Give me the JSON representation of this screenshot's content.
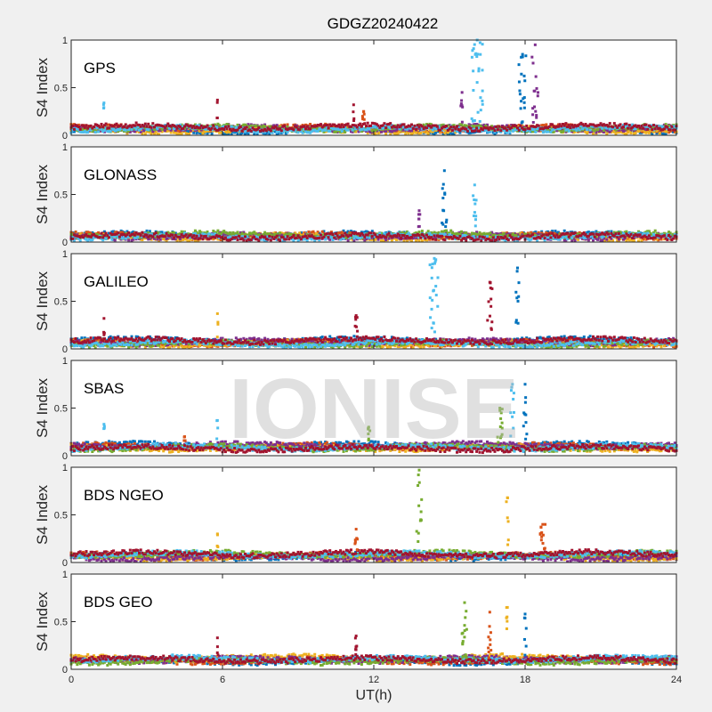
{
  "chart_data": {
    "type": "scatter",
    "title": "GDGZ20240422",
    "xlabel": "UT(h)",
    "ylabel": "S4 Index",
    "xlim": [
      0,
      24
    ],
    "ylim": [
      0,
      1
    ],
    "xticks": [
      "0",
      "6",
      "12",
      "18",
      "24"
    ],
    "yticks": [
      "0",
      "0.5",
      "1"
    ],
    "watermark": "IONISE",
    "grid": false,
    "colors": [
      "#0072BD",
      "#D95319",
      "#EDB120",
      "#7E2F8E",
      "#77AC30",
      "#4DBEEE",
      "#A2142F"
    ],
    "panels": [
      {
        "name": "GPS",
        "baseline": 0.07,
        "spikes": [
          {
            "t": 1.3,
            "peak": 0.34,
            "color": 5,
            "width": 0.05
          },
          {
            "t": 5.8,
            "peak": 0.37,
            "color": 6,
            "width": 0.05
          },
          {
            "t": 11.2,
            "peak": 0.32,
            "color": 6,
            "width": 0.05
          },
          {
            "t": 11.6,
            "peak": 0.25,
            "color": 1,
            "width": 0.1
          },
          {
            "t": 15.5,
            "peak": 0.45,
            "color": 3,
            "width": 0.1
          },
          {
            "t": 16.1,
            "peak": 1.0,
            "color": 5,
            "width": 0.45
          },
          {
            "t": 17.9,
            "peak": 0.85,
            "color": 0,
            "width": 0.3
          },
          {
            "t": 18.4,
            "peak": 0.95,
            "color": 3,
            "width": 0.25
          }
        ]
      },
      {
        "name": "GLONASS",
        "baseline": 0.07,
        "spikes": [
          {
            "t": 13.8,
            "peak": 0.33,
            "color": 3,
            "width": 0.1
          },
          {
            "t": 14.8,
            "peak": 0.75,
            "color": 0,
            "width": 0.2
          },
          {
            "t": 16.0,
            "peak": 0.6,
            "color": 5,
            "width": 0.15
          }
        ]
      },
      {
        "name": "GALILEO",
        "baseline": 0.07,
        "spikes": [
          {
            "t": 1.3,
            "peak": 0.32,
            "color": 6,
            "width": 0.05
          },
          {
            "t": 5.8,
            "peak": 0.37,
            "color": 2,
            "width": 0.05
          },
          {
            "t": 11.3,
            "peak": 0.35,
            "color": 6,
            "width": 0.1
          },
          {
            "t": 14.4,
            "peak": 0.95,
            "color": 5,
            "width": 0.35
          },
          {
            "t": 16.6,
            "peak": 0.7,
            "color": 6,
            "width": 0.2
          },
          {
            "t": 17.7,
            "peak": 0.85,
            "color": 0,
            "width": 0.15
          }
        ]
      },
      {
        "name": "SBAS",
        "baseline": 0.09,
        "spikes": [
          {
            "t": 1.3,
            "peak": 0.33,
            "color": 5,
            "width": 0.05
          },
          {
            "t": 4.5,
            "peak": 0.2,
            "color": 1,
            "width": 0.05
          },
          {
            "t": 5.8,
            "peak": 0.37,
            "color": 5,
            "width": 0.05
          },
          {
            "t": 11.8,
            "peak": 0.3,
            "color": 4,
            "width": 0.1
          },
          {
            "t": 17.0,
            "peak": 0.5,
            "color": 4,
            "width": 0.2
          },
          {
            "t": 17.5,
            "peak": 0.75,
            "color": 5,
            "width": 0.15
          },
          {
            "t": 18.0,
            "peak": 0.75,
            "color": 0,
            "width": 0.15
          }
        ]
      },
      {
        "name": "BDS NGEO",
        "baseline": 0.07,
        "spikes": [
          {
            "t": 5.8,
            "peak": 0.3,
            "color": 2,
            "width": 0.05
          },
          {
            "t": 11.3,
            "peak": 0.35,
            "color": 1,
            "width": 0.1
          },
          {
            "t": 13.8,
            "peak": 0.97,
            "color": 4,
            "width": 0.2
          },
          {
            "t": 17.3,
            "peak": 0.68,
            "color": 2,
            "width": 0.1
          },
          {
            "t": 18.7,
            "peak": 0.4,
            "color": 1,
            "width": 0.2
          }
        ]
      },
      {
        "name": "BDS GEO",
        "baseline": 0.1,
        "spikes": [
          {
            "t": 5.8,
            "peak": 0.33,
            "color": 6,
            "width": 0.05
          },
          {
            "t": 11.3,
            "peak": 0.35,
            "color": 6,
            "width": 0.1
          },
          {
            "t": 15.6,
            "peak": 0.7,
            "color": 4,
            "width": 0.25
          },
          {
            "t": 16.6,
            "peak": 0.6,
            "color": 1,
            "width": 0.15
          },
          {
            "t": 17.3,
            "peak": 0.65,
            "color": 2,
            "width": 0.1
          },
          {
            "t": 18.0,
            "peak": 0.58,
            "color": 0,
            "width": 0.1
          }
        ]
      }
    ]
  }
}
